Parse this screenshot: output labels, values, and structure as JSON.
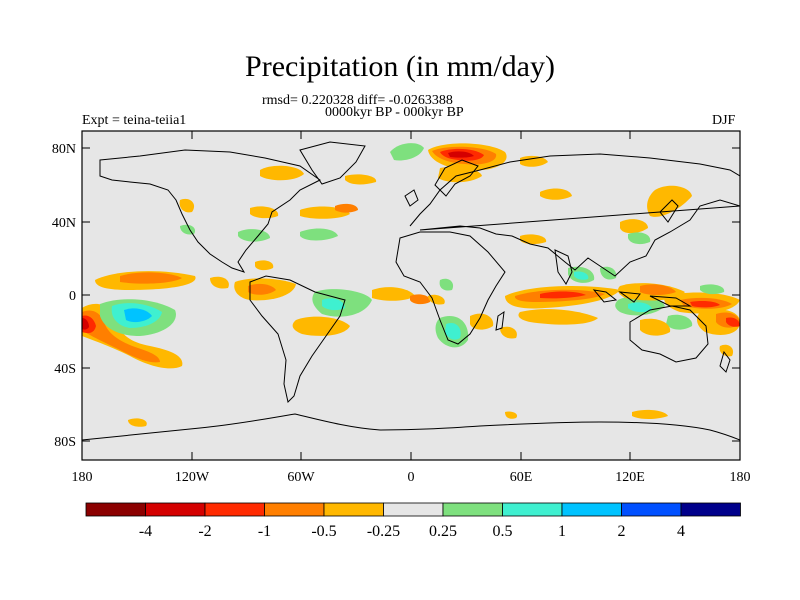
{
  "title": "Precipitation (in mm/day)",
  "stats": "rmsd= 0.220328 diff= -0.0263388",
  "subtitle": "0000kyr BP - 000kyr BP",
  "experiment": "Expt = teina-teiia1",
  "season": "DJF",
  "axes": {
    "lat_ticks": [
      "80N",
      "40N",
      "0",
      "40S",
      "80S"
    ],
    "lon_ticks": [
      "180",
      "120W",
      "60W",
      "0",
      "60E",
      "120E",
      "180"
    ]
  },
  "colorbar": {
    "colors": [
      "#8b0000",
      "#d40000",
      "#ff2a00",
      "#ff7f00",
      "#ffb800",
      "#e6e6e6",
      "#7ee07e",
      "#3ff0d0",
      "#00c3ff",
      "#0050ff",
      "#00008b"
    ],
    "labels": [
      "-4",
      "-2",
      "-1",
      "-0.5",
      "-0.25",
      "0.25",
      "0.5",
      "1",
      "2",
      "4"
    ]
  },
  "colors": {
    "background": "#e6e6e6",
    "coast": "#000000"
  }
}
